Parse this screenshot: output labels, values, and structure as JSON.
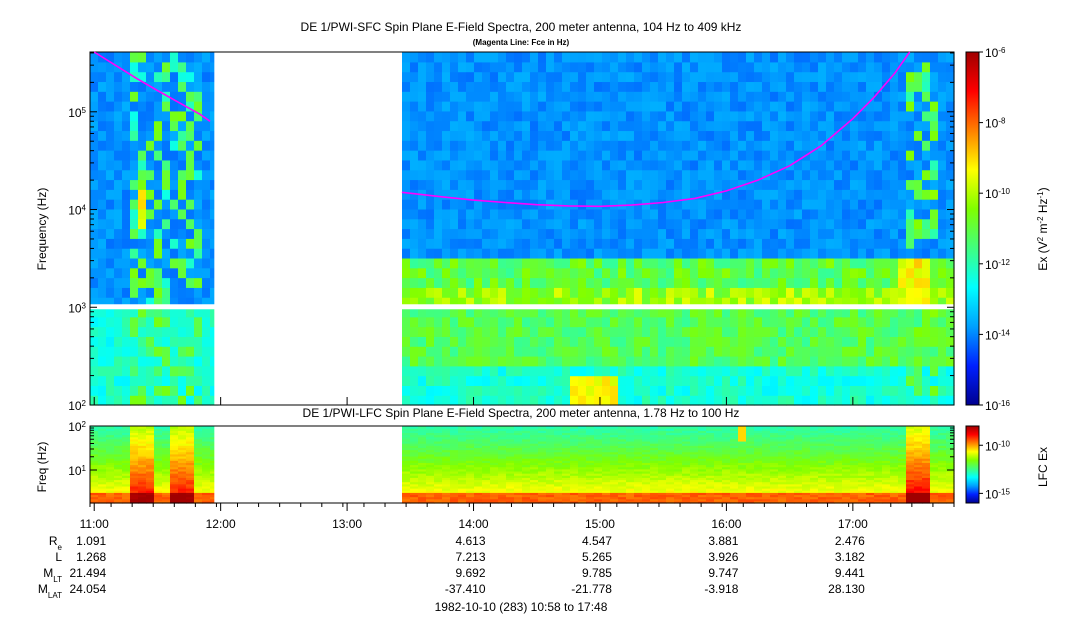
{
  "chart_data": [
    {
      "type": "heatmap",
      "title": "DE 1/PWI-SFC  Spin Plane E-Field Spectra, 200 meter antenna, 104 Hz to 409 kHz",
      "subtitle": "(Magenta Line: Fce in Hz)",
      "ylabel": "Frequency (Hz)",
      "y_scale": "log",
      "ylim": [
        100,
        409000
      ],
      "y_ticks": [
        {
          "value": 100,
          "base": "10",
          "exp": "2"
        },
        {
          "value": 1000,
          "base": "10",
          "exp": "3"
        },
        {
          "value": 10000,
          "base": "10",
          "exp": "4"
        },
        {
          "value": 100000,
          "base": "10",
          "exp": "5"
        }
      ],
      "xlim": [
        "10:58",
        "17:48"
      ],
      "data_gaps": [
        [
          "11:57",
          "13:26"
        ]
      ],
      "colorbar": {
        "label": "Ex (V",
        "label_sup1": "2",
        "label_mid": " m",
        "label_sup2": "-2",
        "label_mid2": " Hz",
        "label_sup3": "-1",
        "label_end": ")",
        "scale": "log",
        "range": [
          1e-16,
          1e-06
        ],
        "ticks": [
          {
            "value": 1e-06,
            "base": "10",
            "exp": "-6"
          },
          {
            "value": 1e-08,
            "base": "10",
            "exp": "-8"
          },
          {
            "value": 1e-10,
            "base": "10",
            "exp": "-10"
          },
          {
            "value": 1e-12,
            "base": "10",
            "exp": "-12"
          },
          {
            "value": 1e-14,
            "base": "10",
            "exp": "-14"
          },
          {
            "value": 1e-16,
            "base": "10",
            "exp": "-16"
          }
        ]
      },
      "colormap": [
        "#000090",
        "#0020ff",
        "#00a0ff",
        "#00ffff",
        "#40ff80",
        "#80ff00",
        "#ffff00",
        "#ff8000",
        "#ff0000",
        "#a00000"
      ],
      "overlay": {
        "name": "Fce",
        "color": "#ff00ff",
        "segments": [
          {
            "t": [
              "11:00",
              "11:10",
              "11:20",
              "11:30",
              "11:40",
              "11:50",
              "11:55"
            ],
            "f": [
              409000,
              300000,
              220000,
              165000,
              125000,
              95000,
              80000
            ]
          },
          {
            "t": [
              "13:26",
              "13:45",
              "14:00",
              "14:15",
              "14:30",
              "14:45",
              "15:00",
              "15:15",
              "15:30",
              "15:45",
              "16:00",
              "16:15",
              "16:30",
              "16:45",
              "17:00",
              "17:10",
              "17:20",
              "17:27"
            ],
            "f": [
              15000,
              13500,
              12500,
              11800,
              11200,
              10900,
              10800,
              11100,
              11800,
              13000,
              15500,
              20000,
              28000,
              45000,
              85000,
              140000,
              250000,
              409000
            ]
          }
        ]
      }
    },
    {
      "type": "heatmap",
      "title": "DE 1/PWI-LFC  Spin Plane E-Field Spectra, 200 meter antenna, 1.78 Hz to 100 Hz",
      "ylabel": "Freq (Hz)",
      "y_scale": "log",
      "ylim": [
        1.78,
        100
      ],
      "y_ticks": [
        {
          "value": 10,
          "base": "10",
          "exp": "1"
        },
        {
          "value": 100,
          "base": "10",
          "exp": "2"
        }
      ],
      "xlim": [
        "10:58",
        "17:48"
      ],
      "data_gaps": [
        [
          "11:57",
          "13:26"
        ]
      ],
      "colorbar": {
        "label": "LFC Ex",
        "scale": "log",
        "range": [
          1e-16,
          1e-08
        ],
        "ticks": [
          {
            "value": 1e-10,
            "base": "10",
            "exp": "-10"
          },
          {
            "value": 1e-15,
            "base": "10",
            "exp": "-15"
          }
        ]
      }
    }
  ],
  "time_axis": {
    "labels": [
      "11:00",
      "12:00",
      "13:00",
      "14:00",
      "15:00",
      "16:00",
      "17:00"
    ],
    "rows": [
      {
        "name": "R",
        "sub": "e",
        "values": [
          "1.091",
          "",
          "",
          "4.613",
          "4.547",
          "3.881",
          "2.476"
        ]
      },
      {
        "name": "L",
        "sub": "",
        "values": [
          "1.268",
          "",
          "",
          "7.213",
          "5.265",
          "3.926",
          "3.182"
        ]
      },
      {
        "name": "M",
        "sub": "LT",
        "values": [
          "21.494",
          "",
          "",
          "9.692",
          "9.785",
          "9.747",
          "9.441"
        ]
      },
      {
        "name": "M",
        "sub": "LAT",
        "values": [
          "24.054",
          "",
          "",
          "-37.410",
          "-21.778",
          "-3.918",
          "28.130"
        ]
      }
    ],
    "date_caption": "1982-10-10 (283) 10:58 to 17:48"
  }
}
